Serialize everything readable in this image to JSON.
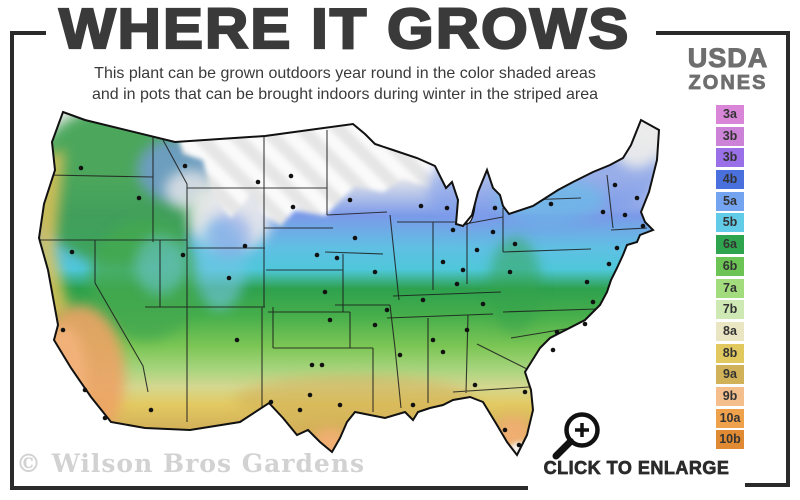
{
  "title": "WHERE IT GROWS",
  "subtitle_line1": "This plant can be grown outdoors year round in the color shaded areas",
  "subtitle_line2": "and in pots that can be brought indoors during winter in the striped area",
  "legend": {
    "title_line1": "USDA",
    "title_line2": "ZONES",
    "label_color": "#333333",
    "zones": [
      {
        "label": "3a",
        "color": "#d986d9"
      },
      {
        "label": "3b",
        "color": "#cc82d6"
      },
      {
        "label": "3b",
        "color": "#9a70e8"
      },
      {
        "label": "4b",
        "color": "#4a70dd"
      },
      {
        "label": "5a",
        "color": "#74a3f0"
      },
      {
        "label": "5b",
        "color": "#62cbe8"
      },
      {
        "label": "6a",
        "color": "#2fa44f"
      },
      {
        "label": "6b",
        "color": "#6cc455"
      },
      {
        "label": "7a",
        "color": "#a2dc7c"
      },
      {
        "label": "7b",
        "color": "#cfe9b5"
      },
      {
        "label": "8a",
        "color": "#eae5c3"
      },
      {
        "label": "8b",
        "color": "#e2c95f"
      },
      {
        "label": "9a",
        "color": "#d2b258"
      },
      {
        "label": "9b",
        "color": "#f4be8d"
      },
      {
        "label": "10a",
        "color": "#f0a14c"
      },
      {
        "label": "10b",
        "color": "#e08b33"
      }
    ]
  },
  "watermark": "© Wilson Bros Gardens",
  "enlarge_label": "CLICK TO ENLARGE",
  "icons": {
    "magnifier": "magnifier-plus-icon"
  },
  "map": {
    "type": "us-usda-hardiness-zones-map",
    "dot_color": "#111111",
    "city_dots": [
      [
        56,
        68
      ],
      [
        47,
        152
      ],
      [
        38,
        230
      ],
      [
        60,
        290
      ],
      [
        80,
        318
      ],
      [
        126,
        310
      ],
      [
        114,
        98
      ],
      [
        158,
        155
      ],
      [
        160,
        66
      ],
      [
        233,
        82
      ],
      [
        266,
        76
      ],
      [
        268,
        107
      ],
      [
        220,
        146
      ],
      [
        204,
        178
      ],
      [
        212,
        240
      ],
      [
        246,
        302
      ],
      [
        287,
        265
      ],
      [
        297,
        265
      ],
      [
        285,
        295
      ],
      [
        275,
        310
      ],
      [
        315,
        305
      ],
      [
        292,
        155
      ],
      [
        300,
        192
      ],
      [
        305,
        220
      ],
      [
        350,
        225
      ],
      [
        325,
        100
      ],
      [
        330,
        138
      ],
      [
        312,
        158
      ],
      [
        350,
        172
      ],
      [
        362,
        210
      ],
      [
        375,
        255
      ],
      [
        388,
        305
      ],
      [
        398,
        200
      ],
      [
        408,
        240
      ],
      [
        418,
        252
      ],
      [
        442,
        230
      ],
      [
        450,
        285
      ],
      [
        500,
        292
      ],
      [
        480,
        330
      ],
      [
        494,
        345
      ],
      [
        428,
        130
      ],
      [
        422,
        108
      ],
      [
        396,
        106
      ],
      [
        470,
        108
      ],
      [
        418,
        162
      ],
      [
        452,
        150
      ],
      [
        438,
        170
      ],
      [
        468,
        132
      ],
      [
        490,
        144
      ],
      [
        526,
        104
      ],
      [
        578,
        112
      ],
      [
        590,
        85
      ],
      [
        600,
        115
      ],
      [
        618,
        126
      ],
      [
        612,
        98
      ],
      [
        592,
        148
      ],
      [
        584,
        164
      ],
      [
        562,
        182
      ],
      [
        568,
        202
      ],
      [
        560,
        224
      ],
      [
        532,
        232
      ],
      [
        528,
        250
      ],
      [
        458,
        204
      ],
      [
        432,
        184
      ],
      [
        485,
        172
      ]
    ]
  }
}
